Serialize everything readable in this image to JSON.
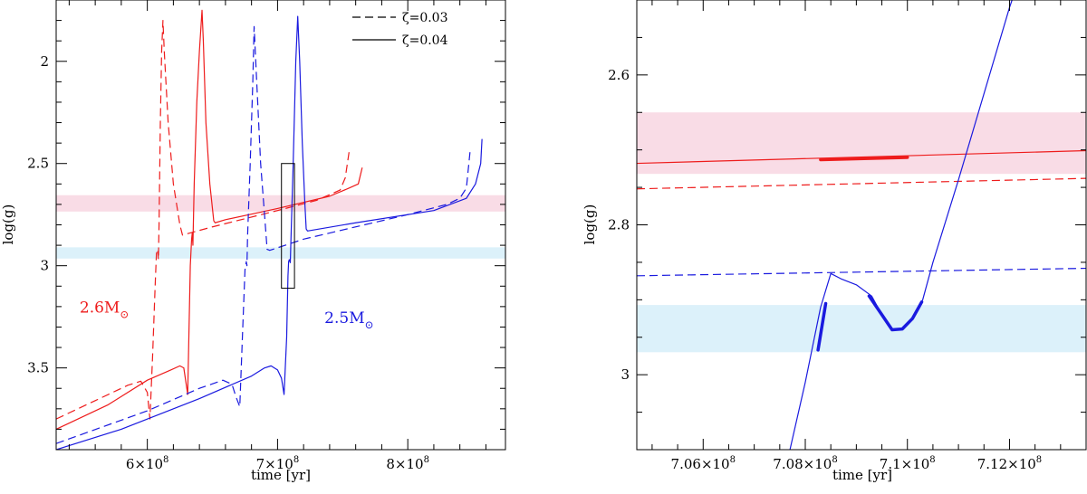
{
  "chart_data": [
    {
      "type": "line",
      "panel": "left",
      "xlabel": "time [yr]",
      "ylabel": "log(g)",
      "xlim": [
        530000000,
        875000000
      ],
      "ylim": [
        3.9,
        1.7
      ],
      "x_ticklabels": [
        {
          "x": 600000000,
          "text": "6×10",
          "exp": "8"
        },
        {
          "x": 700000000,
          "text": "7×10",
          "exp": "8"
        },
        {
          "x": 800000000,
          "text": "8×10",
          "exp": "8"
        }
      ],
      "y_ticklabels": [
        {
          "y": 2.0,
          "text": "2"
        },
        {
          "y": 2.5,
          "text": "2.5"
        },
        {
          "y": 3.0,
          "text": "3"
        },
        {
          "y": 3.5,
          "text": "3.5"
        }
      ],
      "bands": [
        {
          "y0": 2.655,
          "y1": 2.735,
          "color": "#f9dce6"
        },
        {
          "y0": 2.91,
          "y1": 2.965,
          "color": "#dcf1fa"
        }
      ],
      "box": {
        "x0": 703000000,
        "x1": 713000000,
        "y0": 2.5,
        "y1": 3.11
      },
      "legend": [
        {
          "label": "ζ=0.03",
          "style": "dashed"
        },
        {
          "label": "ζ=0.04",
          "style": "solid"
        }
      ],
      "annotations": [
        {
          "text": "2.6M",
          "sub": "⊙",
          "color": "#ee1c1c",
          "x": 548000000,
          "y": 3.23
        },
        {
          "text": "2.5M",
          "sub": "⊙",
          "color": "#1a1adf",
          "x": 736000000,
          "y": 3.28
        }
      ],
      "series": [
        {
          "color": "#ee1c1c",
          "style": "dashed",
          "points": [
            [
              530000000,
              3.75
            ],
            [
              560000000,
              3.66
            ],
            [
              585000000,
              3.585
            ],
            [
              595000000,
              3.565
            ],
            [
              600000000,
              3.62
            ],
            [
              602000000,
              3.75
            ],
            [
              604000000,
              3.45
            ],
            [
              606000000,
              3.1
            ],
            [
              607000000,
              2.94
            ],
            [
              608000000,
              2.92
            ],
            [
              608500000,
              2.97
            ],
            [
              609000000,
              2.8
            ],
            [
              610000000,
              2.3
            ],
            [
              611000000,
              1.95
            ],
            [
              612000000,
              1.8
            ],
            [
              613000000,
              1.95
            ],
            [
              616000000,
              2.3
            ],
            [
              620000000,
              2.6
            ],
            [
              625000000,
              2.8
            ],
            [
              627000000,
              2.85
            ],
            [
              650000000,
              2.81
            ],
            [
              700000000,
              2.73
            ],
            [
              730000000,
              2.68
            ],
            [
              748000000,
              2.63
            ],
            [
              752000000,
              2.57
            ],
            [
              755000000,
              2.44
            ]
          ]
        },
        {
          "color": "#ee1c1c",
          "style": "solid",
          "points": [
            [
              530000000,
              3.8
            ],
            [
              570000000,
              3.68
            ],
            [
              600000000,
              3.56
            ],
            [
              618000000,
              3.51
            ],
            [
              625000000,
              3.49
            ],
            [
              628000000,
              3.5
            ],
            [
              631000000,
              3.63
            ],
            [
              633000000,
              3.0
            ],
            [
              634000000,
              2.87
            ],
            [
              634500000,
              2.84
            ],
            [
              635000000,
              2.9
            ],
            [
              636000000,
              2.6
            ],
            [
              638000000,
              2.2
            ],
            [
              640000000,
              1.95
            ],
            [
              642000000,
              1.75
            ],
            [
              643000000,
              1.9
            ],
            [
              645000000,
              2.3
            ],
            [
              648000000,
              2.6
            ],
            [
              651000000,
              2.78
            ],
            [
              652000000,
              2.79
            ],
            [
              660000000,
              2.775
            ],
            [
              700000000,
              2.72
            ],
            [
              740000000,
              2.66
            ],
            [
              755000000,
              2.62
            ],
            [
              762000000,
              2.6
            ],
            [
              765000000,
              2.52
            ]
          ]
        },
        {
          "color": "#1a1adf",
          "style": "dashed",
          "points": [
            [
              530000000,
              3.87
            ],
            [
              600000000,
              3.71
            ],
            [
              640000000,
              3.6
            ],
            [
              658000000,
              3.56
            ],
            [
              665000000,
              3.58
            ],
            [
              668000000,
              3.64
            ],
            [
              671000000,
              3.69
            ],
            [
              673000000,
              3.35
            ],
            [
              675000000,
              3.02
            ],
            [
              676000000,
              2.98
            ],
            [
              676500000,
              3.0
            ],
            [
              677000000,
              2.85
            ],
            [
              679000000,
              2.5
            ],
            [
              681000000,
              2.1
            ],
            [
              682000000,
              1.83
            ],
            [
              684000000,
              2.1
            ],
            [
              687000000,
              2.5
            ],
            [
              690000000,
              2.75
            ],
            [
              692000000,
              2.92
            ],
            [
              694000000,
              2.925
            ],
            [
              720000000,
              2.87
            ],
            [
              800000000,
              2.75
            ],
            [
              830000000,
              2.7
            ],
            [
              840000000,
              2.67
            ],
            [
              845000000,
              2.62
            ],
            [
              848000000,
              2.43
            ]
          ]
        },
        {
          "color": "#1a1adf",
          "style": "solid",
          "points": [
            [
              530000000,
              3.9
            ],
            [
              580000000,
              3.8
            ],
            [
              640000000,
              3.65
            ],
            [
              680000000,
              3.54
            ],
            [
              690000000,
              3.5
            ],
            [
              695000000,
              3.49
            ],
            [
              700000000,
              3.51
            ],
            [
              703000000,
              3.55
            ],
            [
              705000000,
              3.63
            ],
            [
              707000000,
              3.35
            ],
            [
              708000000,
              3.05
            ],
            [
              708500000,
              2.98
            ],
            [
              709000000,
              2.97
            ],
            [
              709800000,
              2.985
            ],
            [
              710000000,
              2.935
            ],
            [
              712000000,
              2.5
            ],
            [
              714000000,
              2.0
            ],
            [
              715500000,
              1.78
            ],
            [
              717000000,
              2.0
            ],
            [
              719000000,
              2.4
            ],
            [
              721000000,
              2.7
            ],
            [
              722000000,
              2.82
            ],
            [
              723000000,
              2.83
            ],
            [
              760000000,
              2.79
            ],
            [
              820000000,
              2.73
            ],
            [
              845000000,
              2.67
            ],
            [
              852000000,
              2.6
            ],
            [
              856000000,
              2.5
            ],
            [
              857000000,
              2.38
            ]
          ]
        }
      ]
    },
    {
      "type": "line",
      "panel": "right",
      "xlabel": "time [yr]",
      "ylabel": "log(g)",
      "xlim": [
        704700000,
        713500000
      ],
      "ylim": [
        3.1,
        2.5
      ],
      "x_ticklabels": [
        {
          "x": 706000000,
          "text": "7.06×10",
          "exp": "8"
        },
        {
          "x": 708000000,
          "text": "7.08×10",
          "exp": "8"
        },
        {
          "x": 710000000,
          "text": "7.1×10",
          "exp": "8"
        },
        {
          "x": 712000000,
          "text": "7.12×10",
          "exp": "8"
        }
      ],
      "y_ticklabels": [
        {
          "y": 2.6,
          "text": "2.6"
        },
        {
          "y": 2.8,
          "text": "2.8"
        },
        {
          "y": 3.0,
          "text": "3"
        }
      ],
      "bands": [
        {
          "y0": 2.65,
          "y1": 2.732,
          "color": "#f9dce6"
        },
        {
          "y0": 2.907,
          "y1": 2.97,
          "color": "#dcf1fa"
        }
      ],
      "series": [
        {
          "color": "#ee1c1c",
          "style": "solid",
          "points": [
            [
              704700000,
              2.718
            ],
            [
              713500000,
              2.701
            ]
          ]
        },
        {
          "color": "#ee1c1c",
          "style": "dashed",
          "points": [
            [
              704700000,
              2.752
            ],
            [
              713500000,
              2.738
            ]
          ]
        },
        {
          "color": "#1a1adf",
          "style": "dashed",
          "points": [
            [
              704700000,
              2.868
            ],
            [
              713500000,
              2.858
            ]
          ]
        },
        {
          "color": "#1a1adf",
          "style": "solid",
          "points": [
            [
              707700000,
              3.1
            ],
            [
              708000000,
              3.01
            ],
            [
              708300000,
              2.91
            ],
            [
              708500000,
              2.865
            ],
            [
              708700000,
              2.872
            ],
            [
              709000000,
              2.88
            ],
            [
              709300000,
              2.895
            ],
            [
              709500000,
              2.92
            ],
            [
              709700000,
              2.94
            ],
            [
              709900000,
              2.939
            ],
            [
              710100000,
              2.925
            ],
            [
              710300000,
              2.9
            ],
            [
              710500000,
              2.85
            ],
            [
              711000000,
              2.74
            ],
            [
              712000000,
              2.51
            ],
            [
              712050000,
              2.5
            ]
          ]
        }
      ],
      "highlights": [
        {
          "color": "#ee1c1c",
          "points": [
            [
              708300000,
              2.713
            ],
            [
              710000000,
              2.71
            ]
          ]
        },
        {
          "color": "#1a1adf",
          "points": [
            [
              708250000,
              2.967
            ],
            [
              708400000,
              2.905
            ]
          ]
        },
        {
          "color": "#1a1adf",
          "points": [
            [
              709250000,
              2.895
            ],
            [
              709500000,
              2.92
            ],
            [
              709700000,
              2.94
            ],
            [
              709900000,
              2.939
            ],
            [
              710100000,
              2.925
            ],
            [
              710280000,
              2.903
            ]
          ]
        }
      ]
    }
  ]
}
